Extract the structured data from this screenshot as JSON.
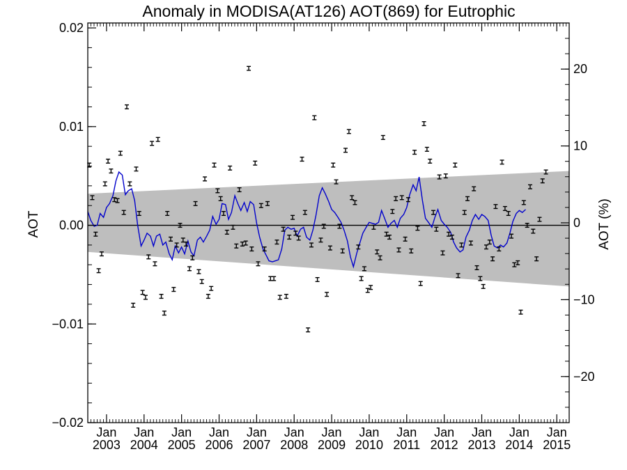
{
  "chart_data": {
    "type": "scatter",
    "title": "Anomaly in MODISA(AT126) AOT(869) for Eutrophic",
    "ylabel": "AOT",
    "ylabel_right": "AOT (%)",
    "xlabel": "",
    "x_range": [
      2002.5,
      2015.33
    ],
    "ylim": [
      -0.02,
      0.0205
    ],
    "ylim_right": [
      -26,
      26
    ],
    "x_ticks": [
      {
        "year": 2003,
        "label": "Jan",
        "sublabel": "2003"
      },
      {
        "year": 2004,
        "label": "Jan",
        "sublabel": "2004"
      },
      {
        "year": 2005,
        "label": "Jan",
        "sublabel": "2005"
      },
      {
        "year": 2006,
        "label": "Jan",
        "sublabel": "2006"
      },
      {
        "year": 2007,
        "label": "Jan",
        "sublabel": "2007"
      },
      {
        "year": 2008,
        "label": "Jan",
        "sublabel": "2008"
      },
      {
        "year": 2009,
        "label": "Jan",
        "sublabel": "2009"
      },
      {
        "year": 2010,
        "label": "Jan",
        "sublabel": "2010"
      },
      {
        "year": 2011,
        "label": "Jan",
        "sublabel": "2011"
      },
      {
        "year": 2012,
        "label": "Jan",
        "sublabel": "2012"
      },
      {
        "year": 2013,
        "label": "Jan",
        "sublabel": "2013"
      },
      {
        "year": 2014,
        "label": "Jan",
        "sublabel": "2014"
      },
      {
        "year": 2015,
        "label": "Jan",
        "sublabel": "2015"
      }
    ],
    "y_ticks_left": [
      {
        "value": 0.02,
        "label": "0.02"
      },
      {
        "value": 0.01,
        "label": "0.01"
      },
      {
        "value": 0.0,
        "label": "0.00"
      },
      {
        "value": -0.01,
        "label": "−0.01"
      },
      {
        "value": -0.02,
        "label": "−0.02"
      }
    ],
    "y_ticks_right": [
      {
        "value": 20,
        "label": "20"
      },
      {
        "value": 10,
        "label": "10"
      },
      {
        "value": 0,
        "label": "0"
      },
      {
        "value": -10,
        "label": "−10"
      },
      {
        "value": -20,
        "label": "−20"
      }
    ],
    "band": {
      "upper": [
        [
          2002.5,
          0.0032
        ],
        [
          2015.33,
          0.0055
        ]
      ],
      "lower": [
        [
          2002.5,
          -0.0027
        ],
        [
          2015.33,
          -0.0062
        ]
      ],
      "color": "#bebebe"
    },
    "zero_line": 0,
    "points_error": 0.0002,
    "points_color": "#000000",
    "line_color": "#0000cc",
    "points": [
      [
        2002.54,
        0.0061
      ],
      [
        2002.62,
        0.0028
      ],
      [
        2002.71,
        -0.0009
      ],
      [
        2002.79,
        -0.0046
      ],
      [
        2002.87,
        -0.0029
      ],
      [
        2002.96,
        0.0042
      ],
      [
        2003.04,
        0.0065
      ],
      [
        2003.12,
        0.0055
      ],
      [
        2003.21,
        0.0026
      ],
      [
        2003.29,
        0.0025
      ],
      [
        2003.37,
        0.0073
      ],
      [
        2003.46,
        0.0013
      ],
      [
        2003.54,
        0.012
      ],
      [
        2003.62,
        0.0042
      ],
      [
        2003.71,
        -0.0081
      ],
      [
        2003.79,
        0.0057
      ],
      [
        2003.87,
        0.0012
      ],
      [
        2003.96,
        -0.0068
      ],
      [
        2004.04,
        -0.0073
      ],
      [
        2004.12,
        -0.0032
      ],
      [
        2004.21,
        0.0083
      ],
      [
        2004.29,
        -0.0039
      ],
      [
        2004.37,
        0.0087
      ],
      [
        2004.46,
        -0.0072
      ],
      [
        2004.54,
        -0.0089
      ],
      [
        2004.62,
        0.0012
      ],
      [
        2004.71,
        -0.0014
      ],
      [
        2004.79,
        -0.0065
      ],
      [
        2004.87,
        -0.002
      ],
      [
        2004.96,
        0.0
      ],
      [
        2005.04,
        -0.0015
      ],
      [
        2005.12,
        -0.0019
      ],
      [
        2005.21,
        -0.0044
      ],
      [
        2005.29,
        -0.0033
      ],
      [
        2005.37,
        0.0022
      ],
      [
        2005.46,
        -0.0047
      ],
      [
        2005.54,
        -0.0057
      ],
      [
        2005.62,
        0.0047
      ],
      [
        2005.71,
        -0.0072
      ],
      [
        2005.79,
        -0.0064
      ],
      [
        2005.87,
        0.0061
      ],
      [
        2005.96,
        0.0035
      ],
      [
        2006.04,
        0.0027
      ],
      [
        2006.12,
        0.0012
      ],
      [
        2006.21,
        -0.0007
      ],
      [
        2006.29,
        0.0058
      ],
      [
        2006.37,
        -0.0002
      ],
      [
        2006.46,
        -0.0021
      ],
      [
        2006.54,
        0.0036
      ],
      [
        2006.62,
        -0.0019
      ],
      [
        2006.71,
        -0.0018
      ],
      [
        2006.79,
        0.0159
      ],
      [
        2006.87,
        -0.0024
      ],
      [
        2006.96,
        0.0063
      ],
      [
        2007.04,
        -0.0039
      ],
      [
        2007.12,
        0.002
      ],
      [
        2007.21,
        -0.0024
      ],
      [
        2007.29,
        0.0022
      ],
      [
        2007.37,
        -0.0054
      ],
      [
        2007.46,
        -0.0054
      ],
      [
        2007.54,
        -0.0017
      ],
      [
        2007.62,
        -0.0073
      ],
      [
        2007.71,
        -0.0004
      ],
      [
        2007.79,
        -0.0072
      ],
      [
        2007.87,
        -0.0012
      ],
      [
        2007.96,
        0.0008
      ],
      [
        2008.04,
        -0.0008
      ],
      [
        2008.12,
        -0.0013
      ],
      [
        2008.21,
        0.0067
      ],
      [
        2008.29,
        0.0013
      ],
      [
        2008.37,
        -0.0106
      ],
      [
        2008.46,
        -0.002
      ],
      [
        2008.54,
        0.0109
      ],
      [
        2008.62,
        -0.0055
      ],
      [
        2008.71,
        -0.0015
      ],
      [
        2008.79,
        -0.0001
      ],
      [
        2008.87,
        -0.007
      ],
      [
        2008.96,
        -0.0023
      ],
      [
        2009.04,
        0.0061
      ],
      [
        2009.12,
        0.0044
      ],
      [
        2009.21,
        -0.0001
      ],
      [
        2009.29,
        -0.0026
      ],
      [
        2009.37,
        0.0076
      ],
      [
        2009.46,
        0.0095
      ],
      [
        2009.54,
        0.0028
      ],
      [
        2009.62,
        0.0023
      ],
      [
        2009.71,
        -0.0022
      ],
      [
        2009.79,
        -0.0054
      ],
      [
        2009.87,
        -0.0044
      ],
      [
        2009.96,
        -0.0066
      ],
      [
        2010.04,
        -0.0063
      ],
      [
        2010.12,
        -0.0002
      ],
      [
        2010.21,
        -0.0027
      ],
      [
        2010.29,
        -0.0033
      ],
      [
        2010.37,
        0.0089
      ],
      [
        2010.46,
        -0.0009
      ],
      [
        2010.54,
        -0.0012
      ],
      [
        2010.62,
        0.0014
      ],
      [
        2010.71,
        0.0027
      ],
      [
        2010.79,
        -0.0025
      ],
      [
        2010.87,
        0.0028
      ],
      [
        2010.96,
        -0.0014
      ],
      [
        2011.04,
        0.0026
      ],
      [
        2011.12,
        -0.0026
      ],
      [
        2011.21,
        0.0074
      ],
      [
        2011.29,
        -0.0003
      ],
      [
        2011.37,
        -0.0059
      ],
      [
        2011.46,
        0.0103
      ],
      [
        2011.54,
        0.0077
      ],
      [
        2011.62,
        0.0065
      ],
      [
        2011.71,
        0.0013
      ],
      [
        2011.79,
        -0.0004
      ],
      [
        2011.87,
        0.0049
      ],
      [
        2011.96,
        -0.0028
      ],
      [
        2012.04,
        0.005
      ],
      [
        2012.12,
        -0.0009
      ],
      [
        2012.21,
        -0.0012
      ],
      [
        2012.29,
        0.0061
      ],
      [
        2012.37,
        -0.0051
      ],
      [
        2012.46,
        -0.002
      ],
      [
        2012.54,
        0.0013
      ],
      [
        2012.62,
        0.0027
      ],
      [
        2012.71,
        -0.0018
      ],
      [
        2012.79,
        0.0037
      ],
      [
        2012.87,
        -0.0043
      ],
      [
        2012.96,
        -0.0054
      ],
      [
        2013.04,
        -0.0062
      ],
      [
        2013.12,
        -0.0022
      ],
      [
        2013.21,
        -0.0017
      ],
      [
        2013.29,
        -0.0034
      ],
      [
        2013.37,
        0.0019
      ],
      [
        2013.46,
        -0.0024
      ],
      [
        2013.54,
        0.0064
      ],
      [
        2013.62,
        0.0017
      ],
      [
        2013.71,
        0.0012
      ],
      [
        2013.79,
        -0.0011
      ],
      [
        2013.87,
        -0.004
      ],
      [
        2013.96,
        -0.0038
      ],
      [
        2014.04,
        -0.0088
      ],
      [
        2014.12,
        0.0023
      ],
      [
        2014.21,
        0.0
      ],
      [
        2014.29,
        0.0039
      ],
      [
        2014.37,
        -0.0006
      ],
      [
        2014.46,
        -0.0034
      ],
      [
        2014.54,
        0.0006
      ],
      [
        2014.62,
        0.0045
      ],
      [
        2014.71,
        0.0054
      ]
    ],
    "line": [
      [
        2002.5,
        0.0014
      ],
      [
        2002.58,
        0.0005
      ],
      [
        2002.67,
        -0.0001
      ],
      [
        2002.75,
        0.0
      ],
      [
        2002.83,
        0.0012
      ],
      [
        2002.92,
        0.0008
      ],
      [
        2003.0,
        0.0018
      ],
      [
        2003.08,
        0.0022
      ],
      [
        2003.17,
        0.003
      ],
      [
        2003.25,
        0.0045
      ],
      [
        2003.33,
        0.0054
      ],
      [
        2003.42,
        0.0051
      ],
      [
        2003.5,
        0.0031
      ],
      [
        2003.58,
        0.0035
      ],
      [
        2003.67,
        0.0037
      ],
      [
        2003.75,
        0.0025
      ],
      [
        2003.83,
        0.0
      ],
      [
        2003.92,
        -0.0021
      ],
      [
        2004.0,
        -0.0015
      ],
      [
        2004.08,
        -0.0008
      ],
      [
        2004.17,
        -0.0011
      ],
      [
        2004.25,
        -0.0021
      ],
      [
        2004.33,
        -0.0011
      ],
      [
        2004.42,
        -0.0009
      ],
      [
        2004.5,
        -0.002
      ],
      [
        2004.58,
        -0.0017
      ],
      [
        2004.67,
        -0.0029
      ],
      [
        2004.75,
        -0.0035
      ],
      [
        2004.83,
        -0.0021
      ],
      [
        2004.92,
        -0.0028
      ],
      [
        2005.0,
        -0.0022
      ],
      [
        2005.08,
        -0.0029
      ],
      [
        2005.17,
        -0.0016
      ],
      [
        2005.25,
        -0.0027
      ],
      [
        2005.33,
        -0.0031
      ],
      [
        2005.42,
        -0.0015
      ],
      [
        2005.5,
        -0.0012
      ],
      [
        2005.58,
        -0.0017
      ],
      [
        2005.67,
        -0.0011
      ],
      [
        2005.75,
        -0.0005
      ],
      [
        2005.83,
        0.0009
      ],
      [
        2005.92,
        0.0001
      ],
      [
        2006.0,
        0.0006
      ],
      [
        2006.08,
        0.0022
      ],
      [
        2006.17,
        0.0021
      ],
      [
        2006.25,
        0.0006
      ],
      [
        2006.33,
        0.0013
      ],
      [
        2006.42,
        0.003
      ],
      [
        2006.5,
        0.0022
      ],
      [
        2006.58,
        0.0015
      ],
      [
        2006.67,
        0.0023
      ],
      [
        2006.75,
        0.0014
      ],
      [
        2006.83,
        0.0024
      ],
      [
        2006.92,
        0.0021
      ],
      [
        2007.0,
        0.0002
      ],
      [
        2007.08,
        -0.0012
      ],
      [
        2007.17,
        -0.0024
      ],
      [
        2007.25,
        -0.003
      ],
      [
        2007.33,
        -0.0036
      ],
      [
        2007.42,
        -0.0037
      ],
      [
        2007.5,
        -0.0036
      ],
      [
        2007.58,
        -0.0035
      ],
      [
        2007.67,
        -0.0024
      ],
      [
        2007.75,
        -0.0005
      ],
      [
        2007.83,
        -0.0002
      ],
      [
        2007.92,
        -0.0004
      ],
      [
        2008.0,
        -0.0003
      ],
      [
        2008.08,
        -0.0011
      ],
      [
        2008.17,
        -0.0004
      ],
      [
        2008.25,
        -0.0002
      ],
      [
        2008.33,
        -0.0012
      ],
      [
        2008.42,
        -0.0015
      ],
      [
        2008.5,
        -0.0005
      ],
      [
        2008.58,
        0.001
      ],
      [
        2008.67,
        0.003
      ],
      [
        2008.75,
        0.0038
      ],
      [
        2008.83,
        0.0032
      ],
      [
        2008.92,
        0.0024
      ],
      [
        2009.0,
        0.0016
      ],
      [
        2009.08,
        0.0013
      ],
      [
        2009.17,
        0.0008
      ],
      [
        2009.25,
        0.0003
      ],
      [
        2009.33,
        -0.0005
      ],
      [
        2009.42,
        -0.0016
      ],
      [
        2009.5,
        -0.0032
      ],
      [
        2009.58,
        -0.0042
      ],
      [
        2009.67,
        -0.0028
      ],
      [
        2009.75,
        -0.0018
      ],
      [
        2009.83,
        -0.0008
      ],
      [
        2009.92,
        -0.0002
      ],
      [
        2010.0,
        0.0003
      ],
      [
        2010.08,
        0.0002
      ],
      [
        2010.17,
        0.0001
      ],
      [
        2010.25,
        0.0003
      ],
      [
        2010.33,
        0.0015
      ],
      [
        2010.42,
        0.0006
      ],
      [
        2010.5,
        -0.0002
      ],
      [
        2010.58,
        0.0002
      ],
      [
        2010.67,
        0.0005
      ],
      [
        2010.75,
        -0.0002
      ],
      [
        2010.83,
        0.0007
      ],
      [
        2010.92,
        0.0011
      ],
      [
        2011.0,
        0.0018
      ],
      [
        2011.08,
        0.0031
      ],
      [
        2011.17,
        0.0041
      ],
      [
        2011.25,
        0.0035
      ],
      [
        2011.33,
        0.0049
      ],
      [
        2011.42,
        0.0025
      ],
      [
        2011.5,
        0.0007
      ],
      [
        2011.58,
        0.0003
      ],
      [
        2011.67,
        -0.0002
      ],
      [
        2011.75,
        0.0008
      ],
      [
        2011.83,
        0.0016
      ],
      [
        2011.92,
        0.0005
      ],
      [
        2012.0,
        0.0001
      ],
      [
        2012.08,
        -0.0002
      ],
      [
        2012.17,
        -0.0007
      ],
      [
        2012.25,
        -0.0017
      ],
      [
        2012.33,
        -0.0023
      ],
      [
        2012.42,
        -0.0027
      ],
      [
        2012.5,
        -0.0025
      ],
      [
        2012.58,
        -0.0012
      ],
      [
        2012.67,
        -0.0005
      ],
      [
        2012.75,
        0.0005
      ],
      [
        2012.83,
        0.0011
      ],
      [
        2012.92,
        0.0006
      ],
      [
        2013.0,
        0.0011
      ],
      [
        2013.08,
        0.0009
      ],
      [
        2013.17,
        0.0005
      ],
      [
        2013.25,
        -0.001
      ],
      [
        2013.33,
        -0.0021
      ],
      [
        2013.42,
        -0.0023
      ],
      [
        2013.5,
        -0.002
      ],
      [
        2013.58,
        -0.0022
      ],
      [
        2013.67,
        -0.0018
      ],
      [
        2013.75,
        -0.0008
      ],
      [
        2013.83,
        0.0004
      ],
      [
        2013.92,
        0.0012
      ],
      [
        2014.0,
        0.0015
      ],
      [
        2014.08,
        0.0013
      ],
      [
        2014.17,
        0.0016
      ]
    ]
  }
}
